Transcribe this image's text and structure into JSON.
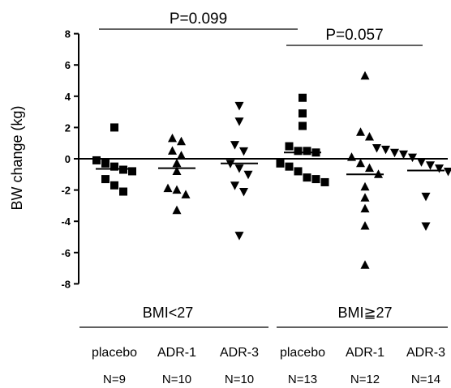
{
  "chart_data": {
    "type": "scatter",
    "ylabel": "BW change (kg)",
    "ylim": [
      -8,
      8
    ],
    "yticks": [
      8,
      6,
      4,
      2,
      0,
      -2,
      -4,
      -6,
      -8
    ],
    "zero_line": true,
    "groups": [
      {
        "key": "BMI<27",
        "label": "BMI<27"
      },
      {
        "key": "BMI>=27",
        "label": "BMI≧27"
      }
    ],
    "categories": [
      {
        "label": "placebo",
        "n": "N=9",
        "group": 0,
        "marker": "square",
        "mean": -0.65,
        "values": [
          2.0,
          -0.1,
          -0.3,
          -0.5,
          -0.7,
          -0.8,
          -1.3,
          -1.7,
          -2.1
        ]
      },
      {
        "label": "ADR-1",
        "n": "N=10",
        "group": 0,
        "marker": "triangle-up",
        "mean": -0.6,
        "values": [
          1.3,
          1.1,
          0.5,
          0.2,
          -0.3,
          -0.8,
          -1.9,
          -2.0,
          -2.3,
          -3.3
        ]
      },
      {
        "label": "ADR-3",
        "n": "N=10",
        "group": 0,
        "marker": "triangle-down",
        "mean": -0.3,
        "values": [
          3.4,
          2.4,
          0.9,
          0.5,
          -0.3,
          -0.6,
          -1.0,
          -1.7,
          -2.1,
          -4.9
        ]
      },
      {
        "label": "placebo",
        "n": "N=13",
        "group": 1,
        "marker": "square",
        "mean": 0.4,
        "values": [
          3.9,
          2.9,
          2.1,
          0.8,
          0.5,
          0.5,
          0.4,
          -0.3,
          -0.5,
          -0.8,
          -1.2,
          -1.3,
          -1.5
        ]
      },
      {
        "label": "ADR-1",
        "n": "N=12",
        "group": 1,
        "marker": "triangle-up",
        "mean": -1.0,
        "values": [
          5.3,
          1.7,
          1.4,
          0.1,
          -0.3,
          -0.6,
          -1.0,
          -1.8,
          -2.5,
          -3.2,
          -4.3,
          -6.8
        ]
      },
      {
        "label": "ADR-3",
        "n": "N=14",
        "group": 1,
        "marker": "triangle-down",
        "mean": -0.75,
        "values": [
          0.7,
          0.6,
          0.4,
          0.3,
          0.1,
          -0.2,
          -0.4,
          -0.6,
          -0.8,
          -1.0,
          -1.4,
          -1.5,
          -2.4,
          -4.3
        ]
      }
    ],
    "annotations": [
      {
        "text": "P=0.099",
        "from": 0,
        "to": 3
      },
      {
        "text": "P=0.057",
        "from": 3,
        "to": 5
      }
    ]
  }
}
